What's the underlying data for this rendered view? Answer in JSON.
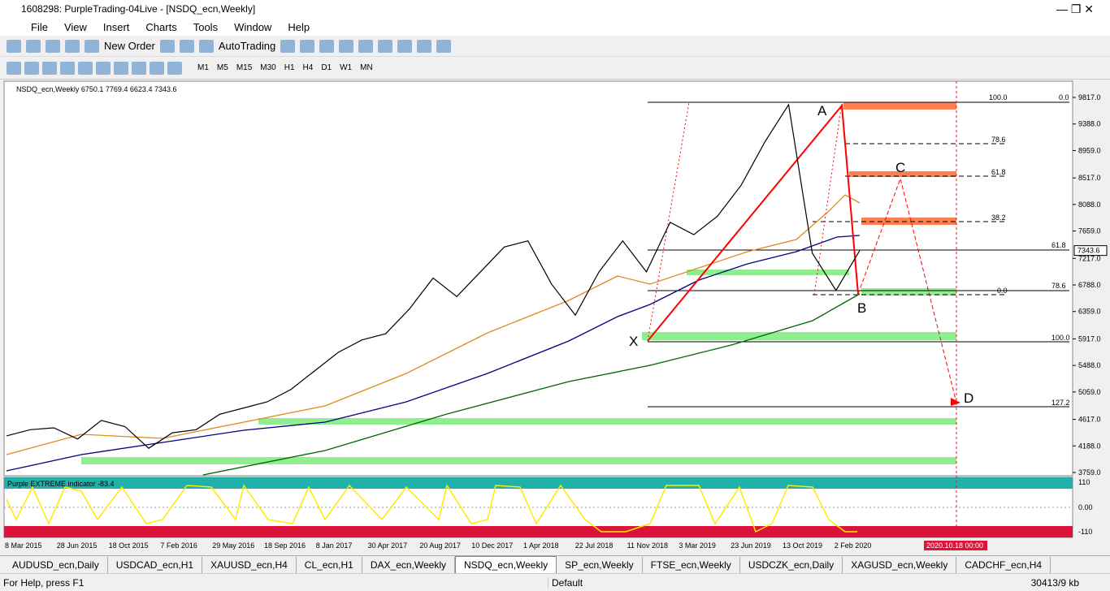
{
  "window": {
    "title": "1608298: PurpleTrading-04Live - [NSDQ_ecn,Weekly]"
  },
  "menu": [
    "File",
    "View",
    "Insert",
    "Charts",
    "Tools",
    "Window",
    "Help"
  ],
  "toolbar": {
    "new_order": "New Order",
    "auto_trading": "AutoTrading",
    "timeframes": [
      "M1",
      "M5",
      "M15",
      "M30",
      "H1",
      "H4",
      "D1",
      "W1",
      "MN"
    ]
  },
  "chart": {
    "header": "NSDQ_ecn,Weekly  6750.1 7769.4 6623.4 7343.6",
    "ylim": [
      3759,
      9817
    ],
    "price_ticks": [
      {
        "value": 9817,
        "label": "9817.0"
      },
      {
        "value": 9388,
        "label": "9388.0"
      },
      {
        "value": 8959,
        "label": "8959.0"
      },
      {
        "value": 8517,
        "label": "8517.0"
      },
      {
        "value": 8088,
        "label": "8088.0"
      },
      {
        "value": 7659,
        "label": "7659.0"
      },
      {
        "value": 7217,
        "label": "7217.0"
      },
      {
        "value": 6788,
        "label": "6788.0"
      },
      {
        "value": 6359,
        "label": "6359.0"
      },
      {
        "value": 5917,
        "label": "5917.0"
      },
      {
        "value": 5488,
        "label": "5488.0"
      },
      {
        "value": 5059,
        "label": "5059.0"
      },
      {
        "value": 4617,
        "label": "4617.0"
      },
      {
        "value": 4188,
        "label": "4188.0"
      },
      {
        "value": 3759,
        "label": "3759.0"
      }
    ],
    "current_price": 7343.6,
    "dates": [
      "8 Mar 2015",
      "28 Jun 2015",
      "18 Oct 2015",
      "7 Feb 2016",
      "29 May 2016",
      "18 Sep 2016",
      "8 Jan 2017",
      "30 Apr 2017",
      "20 Aug 2017",
      "10 Dec 2017",
      "1 Apr 2018",
      "22 Jul 2018",
      "11 Nov 2018",
      "3 Mar 2019",
      "23 Jun 2019",
      "13 Oct 2019",
      "2 Feb 2020"
    ],
    "future_date": "2020.10.18 00:00",
    "price_series": [
      4350,
      4450,
      4480,
      4300,
      4600,
      4500,
      4150,
      4400,
      4450,
      4700,
      4800,
      4900,
      5100,
      5400,
      5700,
      5900,
      6000,
      6400,
      6900,
      6600,
      7000,
      7400,
      7500,
      6800,
      6300,
      7000,
      7500,
      7000,
      7800,
      7600,
      7900,
      8400,
      9100,
      9700,
      7300,
      6700,
      7343.6
    ],
    "fib_retracement": [
      "100.0",
      "0.0",
      "78.6",
      "61.8",
      "38.2",
      "0.0"
    ],
    "fib_extension": [
      "61.8",
      "78.6",
      "100.0",
      "127.2"
    ],
    "points": [
      "X",
      "A",
      "B",
      "C",
      "D"
    ]
  },
  "indicator": {
    "label": "Purple EXTREME indicator -83.4",
    "ticks": [
      "110",
      "0.00",
      "-110"
    ]
  },
  "tabs": [
    "AUDUSD_ecn,Daily",
    "USDCAD_ecn,H1",
    "XAUUSD_ecn,H4",
    "CL_ecn,H1",
    "DAX_ecn,Weekly",
    "NSDQ_ecn,Weekly",
    "SP_ecn,Weekly",
    "FTSE_ecn,Weekly",
    "USDCZK_ecn,Daily",
    "XAGUSD_ecn,Weekly",
    "CADCHF_ecn,H4"
  ],
  "status": {
    "help": "For Help, press F1",
    "profile": "Default",
    "traffic": "30413/9 kb"
  }
}
